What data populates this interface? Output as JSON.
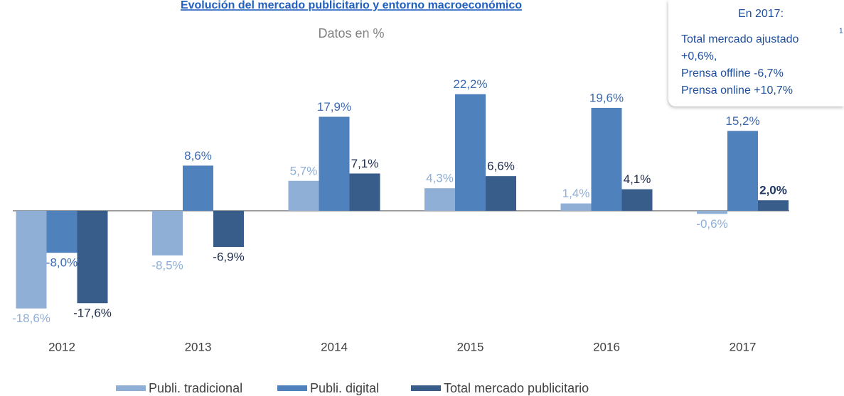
{
  "chart_data": {
    "type": "bar",
    "title": "Evolución del mercado publicitario y entorno macroeconómico",
    "subtitle": "Datos en %",
    "annotation": {
      "lines": [
        "En 2017:",
        "Total mercado ajustado",
        "+0,6%,",
        "Prensa offline -6,7%",
        "Prensa online +10,7%"
      ],
      "superscript": "1"
    },
    "categories": [
      "2012",
      "2013",
      "2014",
      "2015",
      "2016",
      "2017"
    ],
    "series": [
      {
        "name": "Publi. tradicional",
        "color": "#8fafd6",
        "values": [
          -18.6,
          -8.5,
          5.7,
          4.3,
          1.4,
          -0.6
        ],
        "value_labels": [
          "-18,6%",
          "-8,5%",
          "5,7%",
          "4,3%",
          "1,4%",
          "-0,6%"
        ]
      },
      {
        "name": "Publi. digital",
        "color": "#4f81bd",
        "values": [
          -8.0,
          8.6,
          17.9,
          22.2,
          19.6,
          15.2
        ],
        "value_labels": [
          "-8,0%",
          "8,6%",
          "17,9%",
          "22,2%",
          "19,6%",
          "15,2%"
        ]
      },
      {
        "name": "Total mercado publicitario",
        "color": "#385d8a",
        "values": [
          -17.6,
          -6.9,
          7.1,
          6.6,
          4.1,
          2.0
        ],
        "value_labels": [
          "-17,6%",
          "-6,9%",
          "7,1%",
          "6,6%",
          "4,1%",
          "2,0%"
        ]
      }
    ],
    "legend": "bottom"
  }
}
